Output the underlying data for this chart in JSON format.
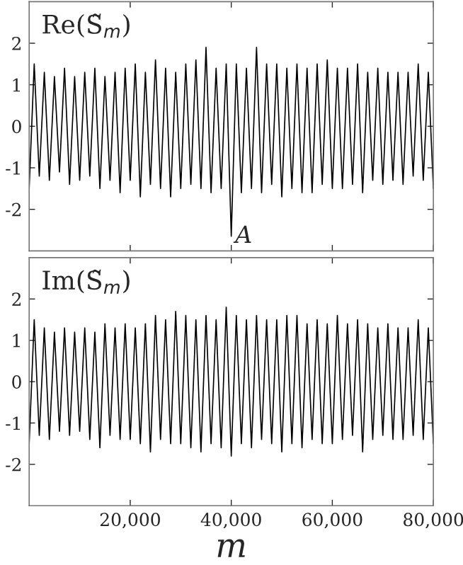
{
  "chart_data": [
    {
      "type": "line",
      "title": "Re(S̃$_{m}$)",
      "color": "#000000",
      "tick_labels": "y",
      "x": [
        0,
        1000,
        2000,
        3000,
        4000,
        5000,
        6000,
        7000,
        8000,
        9000,
        10000,
        11000,
        12000,
        13000,
        14000,
        15000,
        16000,
        17000,
        18000,
        19000,
        20000,
        21000,
        22000,
        23000,
        24000,
        25000,
        26000,
        27000,
        28000,
        29000,
        30000,
        31000,
        32000,
        33000,
        34000,
        35000,
        36000,
        37000,
        38000,
        39000,
        40000,
        41000,
        42000,
        43000,
        44000,
        45000,
        46000,
        47000,
        48000,
        49000,
        50000,
        51000,
        52000,
        53000,
        54000,
        55000,
        56000,
        57000,
        58000,
        59000,
        60000,
        61000,
        62000,
        63000,
        64000,
        65000,
        66000,
        67000,
        68000,
        69000,
        70000,
        71000,
        72000,
        73000,
        74000,
        75000,
        76000,
        77000,
        78000,
        79000,
        80000
      ],
      "values": [
        -1.5,
        1.5,
        -1.2,
        1.3,
        -1.3,
        1.2,
        -1.1,
        1.4,
        -1.4,
        1.2,
        -1.3,
        1.3,
        -1.2,
        1.4,
        -1.5,
        1.2,
        -1.3,
        1.3,
        -1.6,
        1.4,
        -1.3,
        1.5,
        -1.7,
        1.3,
        -1.4,
        1.6,
        -1.5,
        1.4,
        -1.7,
        1.3,
        -1.5,
        1.5,
        -1.4,
        1.6,
        -1.5,
        1.9,
        -1.6,
        1.4,
        -1.5,
        1.5,
        -2.65,
        1.5,
        -1.6,
        1.4,
        -1.5,
        1.9,
        -1.6,
        1.5,
        -1.4,
        1.5,
        -1.7,
        1.4,
        -1.5,
        1.5,
        -1.6,
        1.4,
        -1.6,
        1.5,
        -1.4,
        1.6,
        -1.5,
        1.4,
        -1.5,
        1.4,
        -1.4,
        1.5,
        -1.6,
        1.3,
        -1.3,
        1.4,
        -1.4,
        1.3,
        -1.3,
        1.3,
        -1.4,
        1.3,
        -1.2,
        1.5,
        -1.3,
        1.3,
        -1.5
      ],
      "xlim": [
        0,
        80000
      ],
      "ylim": [
        -3,
        3
      ],
      "xticks": [
        {
          "value": 20000,
          "label": null
        },
        {
          "value": 40000,
          "label": null
        },
        {
          "value": 60000,
          "label": null
        },
        {
          "value": 80000,
          "label": null
        }
      ],
      "yticks": [
        -2,
        -1,
        0,
        1,
        2
      ],
      "annotations": [
        {
          "text": "A",
          "x": 40000,
          "y": -2.65
        }
      ]
    },
    {
      "type": "line",
      "title": "Im(S̃$_{m}$)",
      "color": "#000000",
      "xlabel": "m",
      "x": [
        0,
        1000,
        2000,
        3000,
        4000,
        5000,
        6000,
        7000,
        8000,
        9000,
        10000,
        11000,
        12000,
        13000,
        14000,
        15000,
        16000,
        17000,
        18000,
        19000,
        20000,
        21000,
        22000,
        23000,
        24000,
        25000,
        26000,
        27000,
        28000,
        29000,
        30000,
        31000,
        32000,
        33000,
        34000,
        35000,
        36000,
        37000,
        38000,
        39000,
        40000,
        41000,
        42000,
        43000,
        44000,
        45000,
        46000,
        47000,
        48000,
        49000,
        50000,
        51000,
        52000,
        53000,
        54000,
        55000,
        56000,
        57000,
        58000,
        59000,
        60000,
        61000,
        62000,
        63000,
        64000,
        65000,
        66000,
        67000,
        68000,
        69000,
        70000,
        71000,
        72000,
        73000,
        74000,
        75000,
        76000,
        77000,
        78000,
        79000,
        80000
      ],
      "values": [
        -1.5,
        1.5,
        -1.3,
        1.3,
        -1.4,
        1.2,
        -1.2,
        1.3,
        -1.3,
        1.2,
        -1.2,
        1.3,
        -1.4,
        1.2,
        -1.6,
        1.4,
        -1.3,
        1.3,
        -1.4,
        1.4,
        -1.4,
        1.3,
        -1.5,
        1.4,
        -1.7,
        1.6,
        -1.4,
        1.5,
        -1.5,
        1.7,
        -1.5,
        1.6,
        -1.6,
        1.5,
        -1.7,
        1.6,
        -1.5,
        1.5,
        -1.6,
        1.8,
        -1.8,
        1.6,
        -1.5,
        1.5,
        -1.6,
        1.6,
        -1.4,
        1.5,
        -1.5,
        1.5,
        -1.7,
        1.6,
        -1.5,
        1.6,
        -1.6,
        1.4,
        -1.4,
        1.5,
        -1.5,
        1.4,
        -1.5,
        1.6,
        -1.4,
        1.4,
        -1.3,
        1.5,
        -1.7,
        1.4,
        -1.4,
        1.3,
        -1.3,
        1.4,
        -1.4,
        1.3,
        -1.4,
        1.3,
        -1.3,
        1.5,
        -1.4,
        1.3,
        -1.5
      ],
      "xlim": [
        0,
        80000
      ],
      "ylim": [
        -3,
        3
      ],
      "xticks": [
        {
          "value": 20000,
          "label": "20,000"
        },
        {
          "value": 40000,
          "label": "40,000"
        },
        {
          "value": 60000,
          "label": "60,000"
        },
        {
          "value": 80000,
          "label": "80,000"
        }
      ],
      "yticks": [
        -2,
        -1,
        0,
        1,
        2
      ]
    }
  ]
}
